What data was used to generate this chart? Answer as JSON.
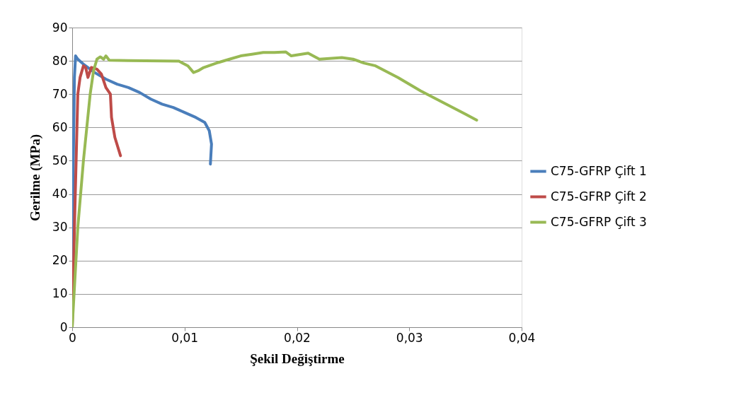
{
  "chart_data": {
    "type": "line",
    "xlabel": "Şekil Değiştirme",
    "ylabel": "Gerilme (MPa)",
    "xlim": [
      0,
      0.04
    ],
    "xticks": [
      {
        "value": 0,
        "label": "0"
      },
      {
        "value": 0.01,
        "label": "0,01"
      },
      {
        "value": 0.02,
        "label": "0,02"
      },
      {
        "value": 0.03,
        "label": "0,03"
      },
      {
        "value": 0.04,
        "label": "0,04"
      }
    ],
    "ylim": [
      0,
      90
    ],
    "yticks": [
      0,
      10,
      20,
      30,
      40,
      50,
      60,
      70,
      80,
      90
    ],
    "grid": "y",
    "legend": "right",
    "marker": "none",
    "line_style": "solid",
    "series": [
      {
        "name": "C75-GFRP Çift 1",
        "color": "#4a7ebb",
        "x": [
          0,
          0.0001,
          0.0002,
          0.0003,
          0.0005,
          0.001,
          0.002,
          0.003,
          0.004,
          0.005,
          0.006,
          0.007,
          0.008,
          0.009,
          0.01,
          0.011,
          0.0118,
          0.0122,
          0.0124,
          0.0123
        ],
        "values": [
          0,
          50,
          75,
          81.5,
          80.5,
          79,
          76.5,
          74.5,
          73,
          72,
          70.5,
          68.5,
          67,
          66,
          64.5,
          63,
          61.5,
          59,
          55,
          49
        ]
      },
      {
        "name": "C75-GFRP Çift 2",
        "color": "#be4b48",
        "x": [
          0,
          0.0002,
          0.0005,
          0.0007,
          0.001,
          0.0012,
          0.0014,
          0.0017,
          0.0022,
          0.0026,
          0.003,
          0.0034,
          0.0035,
          0.0038,
          0.0043
        ],
        "values": [
          0,
          30,
          70,
          75,
          78.5,
          78,
          75,
          78,
          77.5,
          76,
          72,
          70,
          63,
          57,
          51.5
        ]
      },
      {
        "name": "C75-GFRP Çift 3",
        "color": "#98b954",
        "x": [
          0,
          0.0005,
          0.001,
          0.0013,
          0.0016,
          0.0019,
          0.0022,
          0.0025,
          0.0028,
          0.003,
          0.0033,
          0.005,
          0.0095,
          0.0103,
          0.0108,
          0.0112,
          0.0117,
          0.013,
          0.014,
          0.015,
          0.016,
          0.017,
          0.018,
          0.019,
          0.0195,
          0.021,
          0.022,
          0.024,
          0.025,
          0.026,
          0.027,
          0.029,
          0.031,
          0.033,
          0.035,
          0.036
        ],
        "values": [
          0,
          30,
          50,
          60,
          70,
          77,
          80.5,
          81.2,
          80.5,
          81.5,
          80.2,
          80.1,
          79.9,
          78.5,
          76.5,
          77,
          78,
          79.5,
          80.5,
          81.5,
          82,
          82.5,
          82.5,
          82.7,
          81.5,
          82.3,
          80.5,
          81,
          80.5,
          79.3,
          78.5,
          75,
          71,
          67.5,
          64,
          62.2
        ]
      }
    ]
  }
}
